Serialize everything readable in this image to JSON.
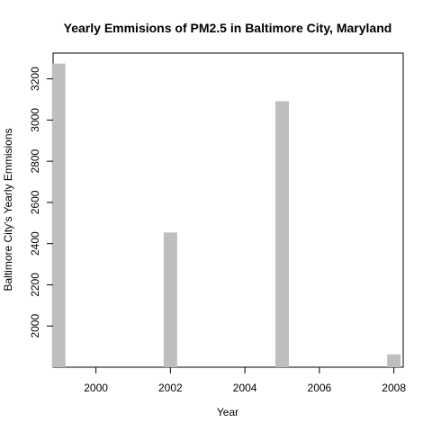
{
  "chart_data": {
    "type": "bar",
    "title": "Yearly Emmisions of PM2.5 in Baltimore City, Maryland",
    "xlabel": "Year",
    "ylabel": "Baltimore City's Yearly Emmisions",
    "x": [
      1999,
      2002,
      2005,
      2008
    ],
    "values": [
      3274.18,
      2453.92,
      3091.35,
      1862.28
    ],
    "xlim": [
      1998.85,
      2008.25
    ],
    "ylim": [
      1800,
      3325
    ],
    "xticks": [
      "2000",
      "2002",
      "2004",
      "2006",
      "2008"
    ],
    "yticks": [
      "2000",
      "2200",
      "2400",
      "2600",
      "2800",
      "3000",
      "3200"
    ],
    "bar_color": "#bebebe",
    "grid": false,
    "legend": "none"
  }
}
